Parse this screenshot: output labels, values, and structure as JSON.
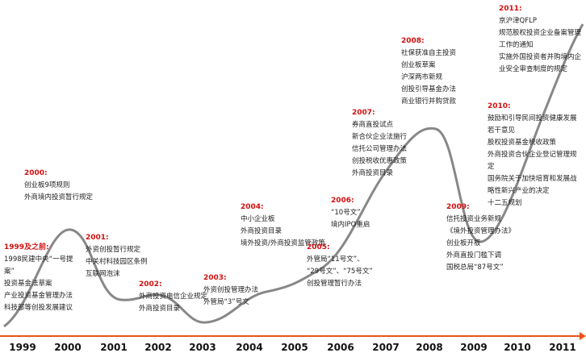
{
  "years": [
    "1999",
    "2000",
    "2001",
    "2002",
    "2003",
    "2004",
    "2005",
    "2006",
    "2007",
    "2008",
    "2009",
    "2010",
    "2011"
  ],
  "annotations": [
    {
      "heading": "1999及之前:",
      "items": [
        "1998民建中央“一号提案”",
        "投资基金法草案",
        "产业投资基金管理办法",
        "科技部等创投发展建议"
      ]
    },
    {
      "heading": "2000:",
      "items": [
        "创业板9项规则",
        "外商境内投资暂行规定"
      ]
    },
    {
      "heading": "2001:",
      "items": [
        "外资创投暂行规定",
        "中关村科技园区条例",
        "互联网泡沫"
      ]
    },
    {
      "heading": "2002:",
      "items": [
        "外商投资电信企业规定",
        "外商投资目录"
      ]
    },
    {
      "heading": "2003:",
      "items": [
        "外资创投管理办法",
        "外管局“3”号文"
      ]
    },
    {
      "heading": "2004:",
      "items": [
        "中小企业板",
        "外商投资目录",
        "境外投资/外商投资监管政策"
      ]
    },
    {
      "heading": "2005:",
      "items": [
        "外管局“11号文”、",
        "“29号文”、“75号文”",
        "创投管理暂行办法"
      ]
    },
    {
      "heading": "2006:",
      "items": [
        "“10号文”",
        "境内IPO重启"
      ]
    },
    {
      "heading": "2007:",
      "items": [
        "券商直投试点",
        "新合伙企业法施行",
        "信托公司管理办法",
        "创投税收优惠政策",
        "外商投资目录"
      ]
    },
    {
      "heading": "2008:",
      "items": [
        "社保获准自主投资",
        "创业板草案",
        "沪深两市新规",
        "创投引导基金办法",
        "商业银行并购贷款"
      ]
    },
    {
      "heading": "2009:",
      "items": [
        "信托投资业务新规",
        "《境外投资管理办法》",
        "创业板开板",
        "外商直投门槛下调",
        "国税总局“87号文”"
      ]
    },
    {
      "heading": "2010:",
      "items": [
        "鼓励和引导民间投资健康发展若干意见",
        "股权投资基金税收政策",
        "外商投资合伙企业登记管理规定",
        "国务院关于加快培育和发展战略性新兴产业的决定",
        "十二五规划"
      ]
    },
    {
      "heading": "2011:",
      "items": [
        "京沪津QFLP",
        "规范股权投资企业备案管理工作的通知",
        "实施外国投资者并购境内企业安全审查制度的规定"
      ]
    }
  ]
}
